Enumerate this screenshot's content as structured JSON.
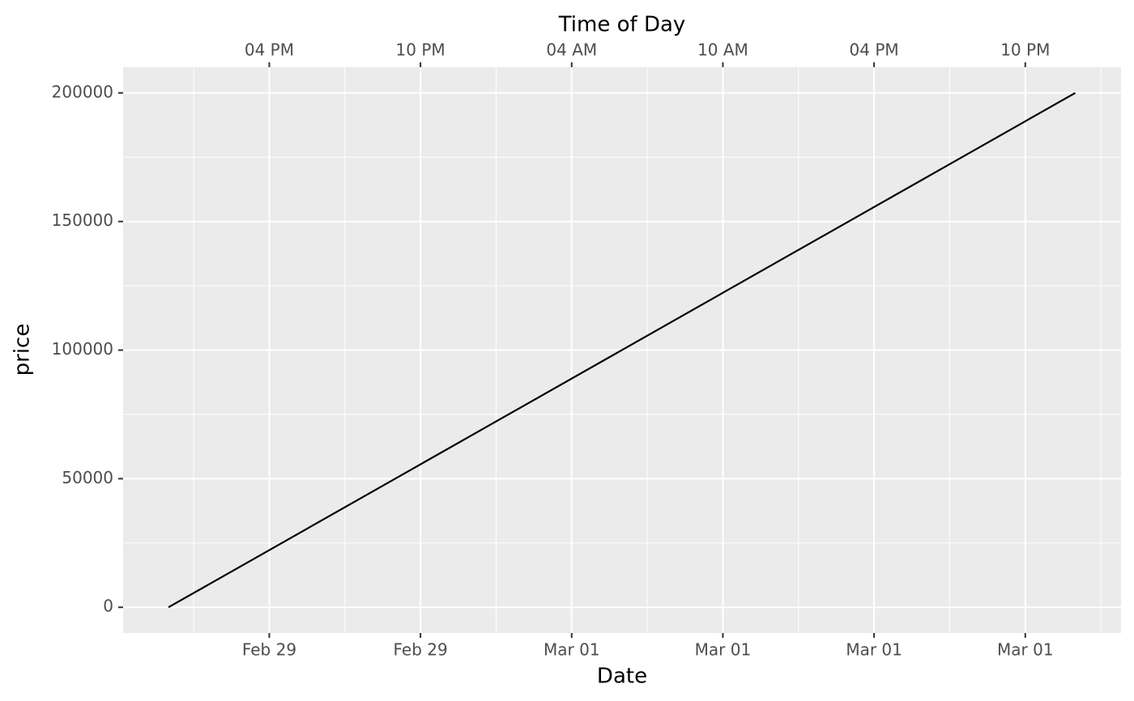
{
  "chart_data": {
    "type": "line",
    "title": "Time of Day",
    "xlabel": "Date",
    "ylabel": "price",
    "x": [
      "Feb 29 12:00 PM",
      "Mar 01 11:59 PM"
    ],
    "series": [
      {
        "name": "price",
        "color": "#000000",
        "values": [
          0,
          200000
        ]
      }
    ],
    "xlim": [
      "Feb 29 10:12 AM",
      "Mar 02 01:48 AM"
    ],
    "xticks": [
      {
        "value": "Feb 29 04:00 PM",
        "label": "Feb 29"
      },
      {
        "value": "Feb 29 10:00 PM",
        "label": "Feb 29"
      },
      {
        "value": "Mar 01 04:00 AM",
        "label": "Mar 01"
      },
      {
        "value": "Mar 01 10:00 AM",
        "label": "Mar 01"
      },
      {
        "value": "Mar 01 04:00 PM",
        "label": "Mar 01"
      },
      {
        "value": "Mar 01 10:00 PM",
        "label": "Mar 01"
      }
    ],
    "x2ticks": [
      {
        "value": "Feb 29 04:00 PM",
        "label": "04 PM"
      },
      {
        "value": "Feb 29 10:00 PM",
        "label": "10 PM"
      },
      {
        "value": "Mar 01 04:00 AM",
        "label": "04 AM"
      },
      {
        "value": "Mar 01 10:00 AM",
        "label": "10 AM"
      },
      {
        "value": "Mar 01 04:00 PM",
        "label": "04 PM"
      },
      {
        "value": "Mar 01 10:00 PM",
        "label": "10 PM"
      }
    ],
    "ylim": [
      -10000,
      210000
    ],
    "yticks": [
      0,
      50000,
      100000,
      150000,
      200000
    ],
    "grid": true
  }
}
